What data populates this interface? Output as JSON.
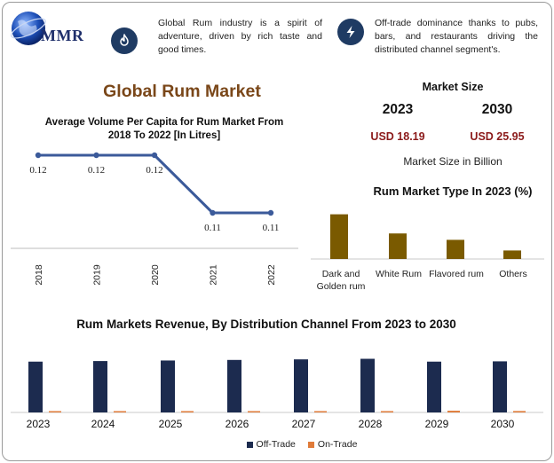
{
  "brand": {
    "logo_text": "MMR"
  },
  "info": [
    {
      "icon": "flame-icon",
      "text": "Global Rum industry is a spirit of adventure, driven by rich taste and good times."
    },
    {
      "icon": "lightning-icon",
      "text": "Off-trade dominance thanks to pubs, bars, and restaurants driving the distributed channel segment's."
    }
  ],
  "main_title": "Global Rum Market",
  "colors": {
    "navy": "#1c2b4f",
    "orange": "#e07b39",
    "brown": "#7a5a00",
    "line": "#3b5a9a",
    "title_brown": "#7a4719",
    "value_red": "#8b1a1a"
  },
  "market_size": {
    "heading": "Market Size",
    "years": [
      "2023",
      "2030"
    ],
    "values": [
      "USD 18.19",
      "USD 25.95"
    ],
    "unit": "Market Size in Billion"
  },
  "chart_data": [
    {
      "type": "line",
      "title": "Average Volume Per Capita for Rum Market From 2018 To 2022 [In Litres]",
      "x": [
        "2018",
        "2019",
        "2020",
        "2021",
        "2022"
      ],
      "values": [
        0.12,
        0.12,
        0.12,
        0.11,
        0.11
      ],
      "value_labels": [
        "0.12",
        "0.12",
        "0.12",
        "0.11",
        "0.11"
      ],
      "ylim": [
        0.1,
        0.13
      ],
      "grid": false
    },
    {
      "type": "bar",
      "title": "Rum Market Type In 2023 (%)",
      "categories": [
        "Dark and Golden rum",
        "White Rum",
        "Flavored rum",
        "Others"
      ],
      "values": [
        42,
        24,
        18,
        8
      ],
      "ylim": [
        0,
        50
      ]
    },
    {
      "type": "bar",
      "title": "Rum Markets Revenue, By Distribution Channel From 2023 to 2030",
      "categories": [
        "2023",
        "2024",
        "2025",
        "2026",
        "2027",
        "2028",
        "2029",
        "2030"
      ],
      "series": [
        {
          "name": "Off-Trade",
          "values": [
            17.9,
            18.1,
            18.3,
            18.5,
            18.7,
            18.9,
            17.9,
            18.0
          ]
        },
        {
          "name": "On-Trade",
          "values": [
            0.3,
            0.3,
            0.3,
            0.3,
            0.3,
            0.3,
            0.6,
            0.5
          ]
        }
      ],
      "ylim": [
        0,
        20
      ],
      "legend": "bottom"
    }
  ]
}
